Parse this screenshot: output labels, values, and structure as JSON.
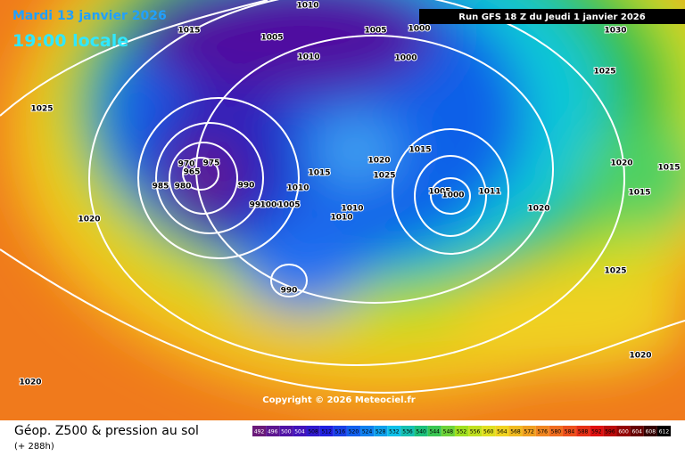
{
  "header": {
    "date": "Mardi 13 janvier 2026",
    "time": "19:00 locale",
    "run": "Run GFS 18 Z du Jeudi 1 janvier 2026"
  },
  "isobar_labels": [
    1010,
    1015,
    1005,
    1005,
    1000,
    1010,
    1000,
    1030,
    1025,
    1025,
    1015,
    1020,
    1025,
    1020,
    1015,
    1015,
    975,
    970,
    965,
    985,
    980,
    990,
    1010,
    1005,
    1000,
    1015,
    1011,
    990,
    1000,
    1005,
    1010,
    1010,
    1020,
    1020,
    1025,
    990,
    1020,
    1020
  ],
  "copyright": "Copyright © 2026 Meteociel.fr",
  "footer": {
    "title": "Géop. Z500 & pression au sol",
    "lead": "(+ 288h)"
  },
  "legend": {
    "ticks": [
      492,
      496,
      500,
      504,
      508,
      512,
      516,
      520,
      524,
      528,
      532,
      536,
      540,
      544,
      548,
      552,
      556,
      560,
      564,
      568,
      572,
      576,
      580,
      584,
      588,
      592,
      596,
      600,
      604,
      608,
      612
    ]
  }
}
